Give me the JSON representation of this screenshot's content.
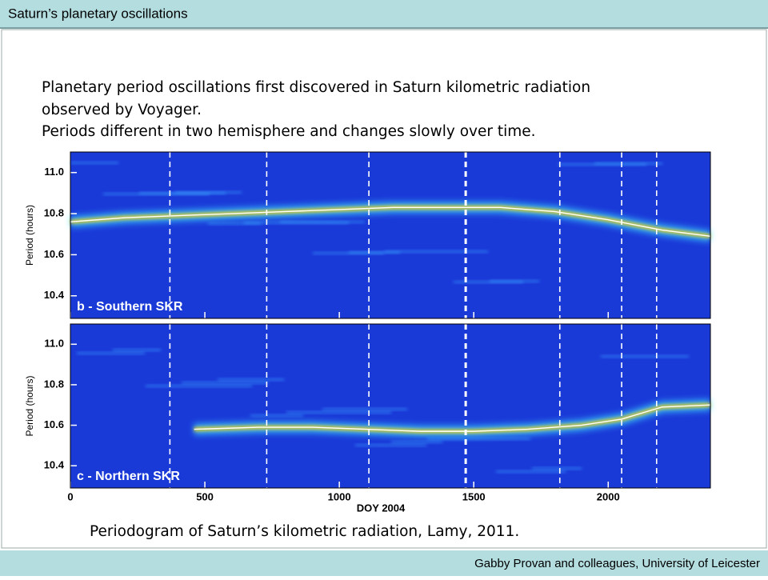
{
  "header": {
    "title": "Saturn’s planetary oscillations"
  },
  "body": {
    "lines": [
      "Planetary period oscillations first discovered in Saturn kilometric radiation",
      "observed by Voyager.",
      "Periods different in two hemisphere and changes slowly over time."
    ]
  },
  "figure": {
    "type": "periodogram",
    "xlabel": "DOY 2004",
    "ylabel": "Period (hours)",
    "xlim": [
      0,
      2380
    ],
    "xticks": [
      0,
      500,
      1000,
      1500,
      2000
    ],
    "ylim": [
      10.29,
      11.1
    ],
    "yticks": [
      10.4,
      10.6,
      10.8,
      {
        "value": 11,
        "label": "11.0"
      }
    ],
    "markers_x": [
      370,
      730,
      1110,
      1470,
      1820,
      2050,
      2180
    ],
    "panels": [
      {
        "label": "b - Southern SKR",
        "trace": {
          "x": [
            0,
            200,
            400,
            600,
            800,
            1000,
            1200,
            1400,
            1600,
            1800,
            2000,
            2200,
            2380
          ],
          "y": [
            10.76,
            10.78,
            10.79,
            10.8,
            10.81,
            10.82,
            10.83,
            10.83,
            10.83,
            10.81,
            10.77,
            10.72,
            10.69
          ]
        }
      },
      {
        "label": "c - Northern SKR",
        "trace": {
          "x": [
            460,
            700,
            900,
            1100,
            1300,
            1500,
            1700,
            1900,
            2050,
            2200,
            2380
          ],
          "y": [
            10.58,
            10.59,
            10.59,
            10.58,
            10.57,
            10.57,
            10.58,
            10.6,
            10.63,
            10.69,
            10.7
          ]
        }
      }
    ]
  },
  "caption": "Periodogram of Saturn’s kilometric radiation, Lamy, 2011.",
  "footer": {
    "credit": "Gabby Provan and colleagues, University of Leicester"
  }
}
